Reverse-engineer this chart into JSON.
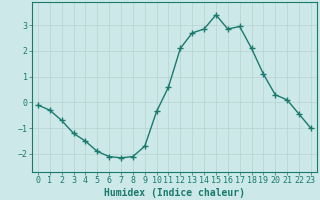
{
  "x": [
    0,
    1,
    2,
    3,
    4,
    5,
    6,
    7,
    8,
    9,
    10,
    11,
    12,
    13,
    14,
    15,
    16,
    17,
    18,
    19,
    20,
    21,
    22,
    23
  ],
  "y": [
    -0.1,
    -0.3,
    -0.7,
    -1.2,
    -1.5,
    -1.9,
    -2.1,
    -2.15,
    -2.1,
    -1.7,
    -0.35,
    0.6,
    2.1,
    2.7,
    2.85,
    3.4,
    2.85,
    2.95,
    2.1,
    1.1,
    0.3,
    0.1,
    -0.45,
    -1.0
  ],
  "line_color": "#1a7a6e",
  "marker": "+",
  "markersize": 4,
  "linewidth": 1.0,
  "bg_color": "#cce8e8",
  "grid_color": "#b8d0d0",
  "xlabel": "Humidex (Indice chaleur)",
  "xlabel_fontsize": 7,
  "ylabel_ticks": [
    -2,
    -1,
    0,
    1,
    2,
    3
  ],
  "xlim": [
    -0.5,
    23.5
  ],
  "ylim": [
    -2.7,
    3.9
  ],
  "tick_label_fontsize": 6,
  "xticks": [
    0,
    1,
    2,
    3,
    4,
    5,
    6,
    7,
    8,
    9,
    10,
    11,
    12,
    13,
    14,
    15,
    16,
    17,
    18,
    19,
    20,
    21,
    22,
    23
  ],
  "axes_color": "#1a7a6e"
}
